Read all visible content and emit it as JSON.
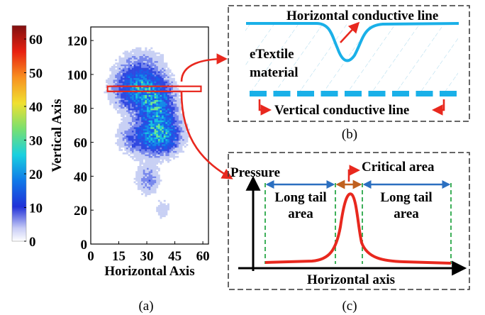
{
  "colorbar": {
    "ticks": [
      "60",
      "50",
      "40",
      "30",
      "20",
      "10",
      "0"
    ],
    "tick_values": [
      60,
      50,
      40,
      30,
      20,
      10,
      0
    ],
    "range": [
      0,
      64
    ]
  },
  "heatmap": {
    "ylabel": "Vertical Axis",
    "xlabel": "Horizontal Axis",
    "x_ticks": [
      "0",
      "15",
      "30",
      "45",
      "60"
    ],
    "x_tick_values": [
      0,
      15,
      30,
      45,
      60
    ],
    "y_ticks": [
      "120",
      "100",
      "80",
      "60",
      "40",
      "20",
      "0"
    ],
    "y_tick_values": [
      120,
      100,
      80,
      60,
      40,
      20,
      0
    ],
    "xlim": [
      0,
      63
    ],
    "ylim": [
      0,
      128
    ],
    "highlight_row": {
      "x": [
        9,
        59
      ],
      "y": [
        90,
        93
      ]
    },
    "caption": "(a)"
  },
  "panel_b": {
    "horizontal_line_label": "Horizontal conductive line",
    "material_label_1": "eTextile",
    "material_label_2": "material",
    "vertical_line_label": "Vertical conductive line",
    "caption": "(b)"
  },
  "panel_c": {
    "ylabel": "Pressure",
    "xlabel": "Horizontal axis",
    "critical_label": "Critical area",
    "long_tail_left_1": "Long tail",
    "long_tail_left_2": "area",
    "long_tail_right_1": "Long tail",
    "long_tail_right_2": "area",
    "caption": "(c)"
  },
  "colors": {
    "cyan_line": "#1ab0e8",
    "arrow_red": "#e8281e",
    "curve_red": "#e8281e",
    "dim_blue": "#2b6fc0",
    "dim_orange": "#c0601f",
    "dash_green": "#2aa848",
    "box_dash": "#000000"
  }
}
